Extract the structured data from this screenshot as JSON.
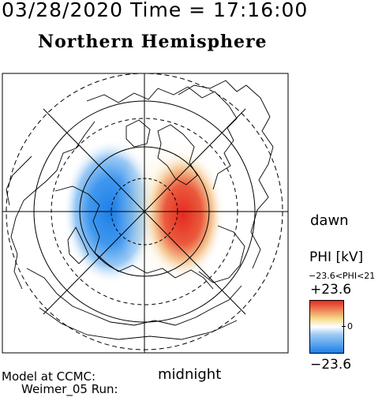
{
  "header": {
    "datetime": "03/28/2020 Time = 17:16:00",
    "hemisphere": "Northern Hemisphere"
  },
  "orientation": {
    "dawn": "dawn",
    "midnight": "midnight"
  },
  "model": {
    "line1": "Model at CCMC:",
    "line2": "Weimer_05 Run:"
  },
  "colorbar": {
    "title": "PHI [kV]",
    "range": "−23.6<PHI<21",
    "max": "+23.6",
    "min": "−23.6",
    "zero": "0",
    "colors": {
      "negative_deep": "#1e7fe8",
      "negative_light": "#9ccaf4",
      "neutral": "#ffffff",
      "positive_light": "#f7dc8c",
      "positive_deep": "#e52a22"
    }
  }
}
